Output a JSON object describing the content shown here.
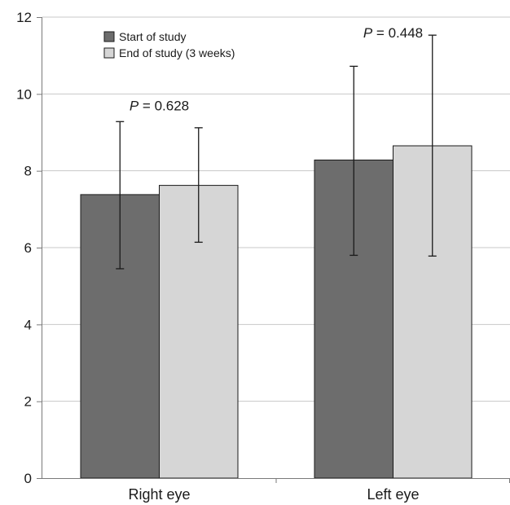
{
  "chart_data": {
    "type": "bar",
    "categories": [
      "Right eye",
      "Left eye"
    ],
    "series": [
      {
        "name": "Start of study",
        "color": "#6d6d6d",
        "values": [
          7.38,
          8.28
        ],
        "error_low": [
          5.45,
          5.8
        ],
        "error_high": [
          9.28,
          10.72
        ]
      },
      {
        "name": "End of study (3 weeks)",
        "color": "#d6d6d6",
        "values": [
          7.62,
          8.65
        ],
        "error_low": [
          6.14,
          5.78
        ],
        "error_high": [
          9.12,
          11.53
        ]
      }
    ],
    "annotations": [
      {
        "category_index": 0,
        "p_symbol": "P",
        "text": " = 0.628",
        "y": 9.7
      },
      {
        "category_index": 1,
        "p_symbol": "P",
        "text": " = 0.448",
        "y": 11.6
      }
    ],
    "ylim": [
      0,
      12
    ],
    "yticks": [
      0,
      2,
      4,
      6,
      8,
      10,
      12
    ],
    "grid": true,
    "legend_position": "top-left",
    "gridline_color": "#c8c8c8",
    "bar_stroke_color": "#1a1a1a",
    "title": "",
    "xlabel": "",
    "ylabel": ""
  }
}
